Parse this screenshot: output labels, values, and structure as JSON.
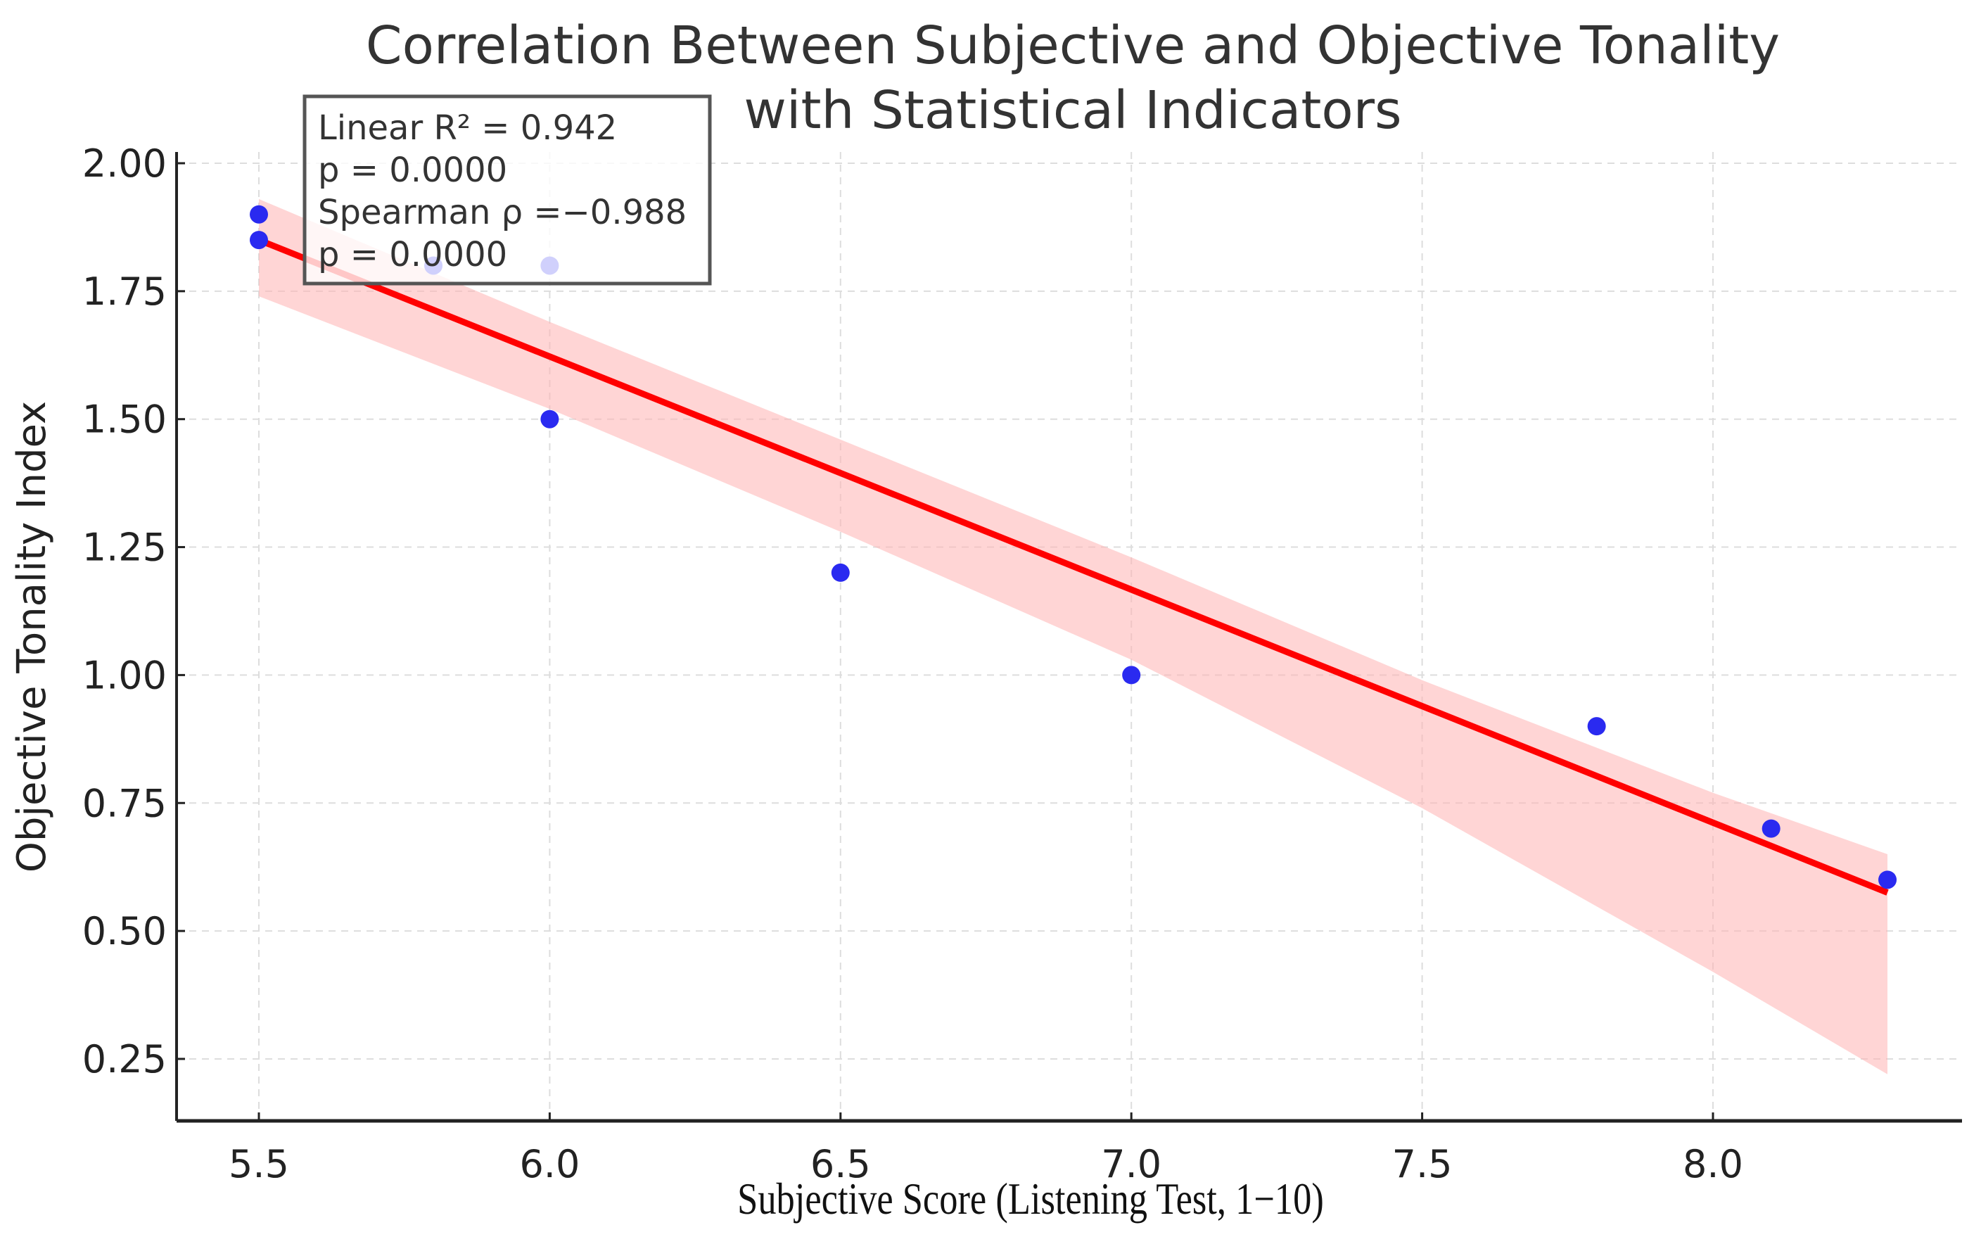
{
  "chart_data": {
    "type": "scatter",
    "title": [
      "Correlation Between Subjective and Objective Tonality",
      "with Statistical Indicators"
    ],
    "xlabel": "Subjective Score (Listening Test, 1−10)",
    "ylabel": "Objective Tonality Index",
    "xlim": [
      5.36,
      8.43
    ],
    "ylim": [
      0.13,
      2.02
    ],
    "xticks": [
      "5.5",
      "6.0",
      "6.5",
      "7.0",
      "7.5",
      "8.0"
    ],
    "yticks": [
      "0.25",
      "0.50",
      "0.75",
      "1.00",
      "1.25",
      "1.50",
      "1.75",
      "2.00"
    ],
    "grid": true,
    "points": [
      {
        "x": 5.5,
        "y": 1.9
      },
      {
        "x": 5.5,
        "y": 1.85
      },
      {
        "x": 5.8,
        "y": 1.8
      },
      {
        "x": 6.0,
        "y": 1.8
      },
      {
        "x": 6.0,
        "y": 1.5
      },
      {
        "x": 6.5,
        "y": 1.2
      },
      {
        "x": 7.0,
        "y": 1.0
      },
      {
        "x": 7.8,
        "y": 0.9
      },
      {
        "x": 8.1,
        "y": 0.7
      },
      {
        "x": 8.3,
        "y": 0.6
      }
    ],
    "fit_line": {
      "x": [
        5.5,
        8.3
      ],
      "y": [
        1.85,
        0.575
      ]
    },
    "ci_band": {
      "x": [
        5.5,
        6.0,
        6.5,
        7.0,
        7.5,
        8.0,
        8.3
      ],
      "upper": [
        1.93,
        1.69,
        1.46,
        1.23,
        0.99,
        0.77,
        0.65
      ],
      "lower": [
        1.74,
        1.52,
        1.28,
        1.03,
        0.74,
        0.42,
        0.22
      ]
    },
    "annotation": [
      "Linear R² = 0.942",
      "p = 0.0000",
      "Spearman ρ =−0.988",
      "p = 0.0000"
    ],
    "colors": {
      "points": "#2a2af0",
      "fit": "#ff0000",
      "band": "#ffb3b3"
    }
  }
}
